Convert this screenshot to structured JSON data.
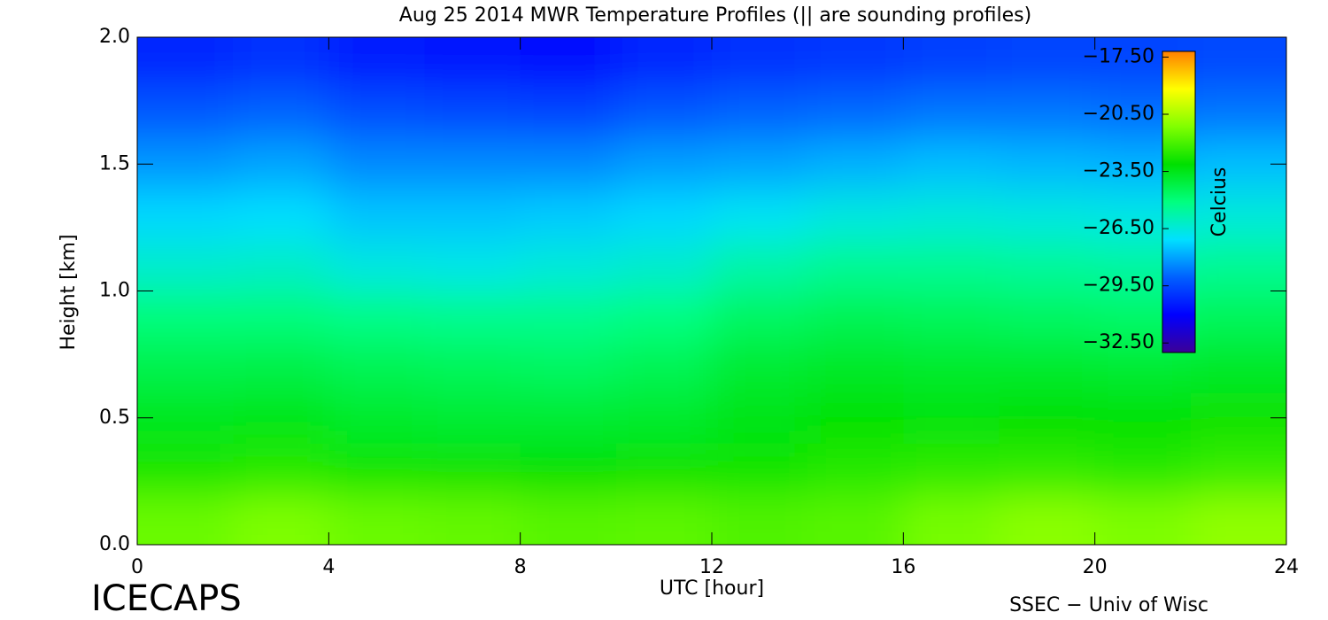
{
  "chart_data": {
    "type": "heatmap",
    "title": "Aug 25 2014 MWR Temperature Profiles (|| are sounding profiles)",
    "x_label": "UTC [hour]",
    "y_label": "Height [km]",
    "colorbar_label": "Celcius",
    "footer_left": "ICECAPS",
    "footer_right": "SSEC − Univ of Wisc",
    "x_edges": [
      0,
      2,
      4,
      6,
      8,
      10,
      12,
      14,
      16,
      18,
      20,
      22,
      24
    ],
    "y_edges": [
      0,
      0.2,
      0.4,
      0.6,
      0.8,
      1.0,
      1.2,
      1.4,
      1.6,
      1.8,
      2.0
    ],
    "z": [
      [
        -21.5,
        -21.2,
        -21.5,
        -21.6,
        -21.8,
        -21.7,
        -21.9,
        -21.8,
        -21.3,
        -21.0,
        -21.2,
        -20.9
      ],
      [
        -22.8,
        -22.6,
        -22.9,
        -23.0,
        -23.1,
        -23.0,
        -22.9,
        -22.6,
        -22.5,
        -22.4,
        -22.6,
        -22.3
      ],
      [
        -23.6,
        -23.5,
        -23.8,
        -23.9,
        -23.9,
        -23.8,
        -23.4,
        -23.2,
        -23.3,
        -23.1,
        -23.2,
        -23.0
      ],
      [
        -24.3,
        -24.2,
        -24.4,
        -24.5,
        -24.6,
        -24.4,
        -23.9,
        -23.7,
        -23.8,
        -23.8,
        -23.9,
        -23.7
      ],
      [
        -25.0,
        -25.0,
        -25.2,
        -25.3,
        -25.3,
        -25.1,
        -24.6,
        -24.4,
        -24.5,
        -24.6,
        -24.7,
        -24.5
      ],
      [
        -26.3,
        -26.2,
        -26.6,
        -26.7,
        -26.5,
        -26.3,
        -25.7,
        -25.4,
        -25.4,
        -25.5,
        -25.6,
        -25.4
      ],
      [
        -27.2,
        -27.1,
        -27.5,
        -27.5,
        -27.4,
        -27.2,
        -26.9,
        -26.6,
        -26.5,
        -26.6,
        -26.7,
        -26.5
      ],
      [
        -28.2,
        -28.0,
        -28.4,
        -28.4,
        -28.4,
        -28.1,
        -28.0,
        -27.8,
        -27.6,
        -27.7,
        -27.8,
        -27.6
      ],
      [
        -29.2,
        -29.0,
        -29.4,
        -29.5,
        -29.6,
        -29.2,
        -29.0,
        -28.9,
        -28.7,
        -28.7,
        -28.8,
        -28.7
      ],
      [
        -30.2,
        -30.0,
        -30.4,
        -30.6,
        -30.7,
        -30.2,
        -30.0,
        -29.9,
        -29.7,
        -29.6,
        -29.6,
        -29.5
      ]
    ],
    "xlim": [
      0,
      24
    ],
    "ylim": [
      0,
      2
    ],
    "xticks": [
      0,
      4,
      8,
      12,
      16,
      20,
      24
    ],
    "yticks": [
      {
        "value": 0,
        "label": "0.0"
      },
      0.5,
      {
        "value": 1,
        "label": "1.0"
      },
      1.5,
      {
        "value": 2,
        "label": "2.0"
      }
    ],
    "clim": [
      -33,
      -17.2
    ],
    "cticks": [
      {
        "value": -17.5,
        "label": "−17.50"
      },
      {
        "value": -20.5,
        "label": "−20.50"
      },
      {
        "value": -23.5,
        "label": "−23.50"
      },
      {
        "value": -26.5,
        "label": "−26.50"
      },
      {
        "value": -29.5,
        "label": "−29.50"
      },
      {
        "value": -32.5,
        "label": "−32.50"
      }
    ],
    "colormap": [
      "#3c0096",
      "#0000ff",
      "#0060ff",
      "#00e0ff",
      "#00ff80",
      "#00e000",
      "#80ff00",
      "#ffff00",
      "#ff8000"
    ]
  }
}
